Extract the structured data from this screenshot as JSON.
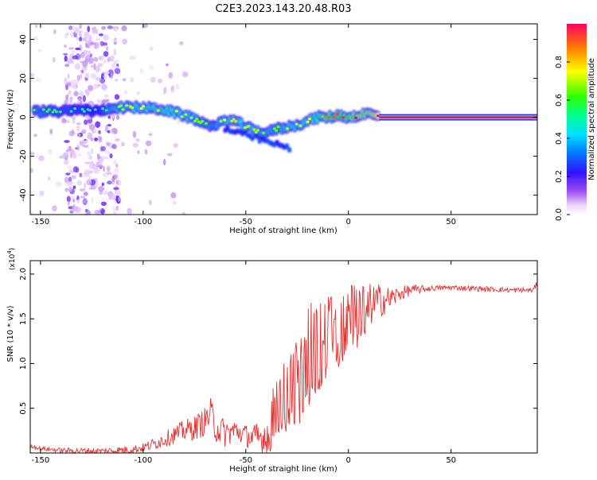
{
  "title": "C2E3.2023.143.20.48.R03",
  "colors": {
    "snr_line": "#e83030",
    "spectrum_colormap": [
      "#ffffff",
      "#e4cdfa",
      "#b070f0",
      "#6a00e0",
      "#2020ff",
      "#00c8ff",
      "#00ff80",
      "#40ff00",
      "#ffff00",
      "#ff8000",
      "#ff0000"
    ]
  },
  "chart_data": [
    {
      "type": "heatmap",
      "name": "spectrogram",
      "xlabel": "Height of straight line (km)",
      "ylabel": "Frequency (Hz)",
      "xlim": [
        -155,
        92
      ],
      "ylim": [
        -50,
        48
      ],
      "x_ticks": [
        -150,
        -100,
        -50,
        0,
        50
      ],
      "y_ticks": [
        40,
        20,
        0,
        -20,
        -40
      ],
      "x_tick_labels": [
        "-150",
        "-100",
        "-50",
        "0",
        "50"
      ],
      "y_tick_labels": [
        "40",
        "20",
        "0",
        "-20",
        "-40"
      ],
      "colorbar": {
        "label": "Normalized spectral amplitude",
        "range": [
          0,
          1
        ],
        "ticks": [
          0.0,
          0.2,
          0.4,
          0.6,
          0.8
        ],
        "tick_labels": [
          "0.0",
          "0.2",
          "0.4",
          "0.6",
          "0.8"
        ]
      },
      "ridge": {
        "x": [
          -152,
          -140,
          -130,
          -122,
          -115,
          -100,
          -90,
          -80,
          -70,
          -65,
          -60,
          -55,
          -50,
          -45,
          -40,
          -35,
          -30,
          -25,
          -20,
          -15,
          -10,
          -5,
          0,
          5,
          10,
          15,
          90
        ],
        "freq": [
          3,
          3,
          4,
          3,
          5,
          5,
          4,
          1,
          -3,
          -5,
          -1,
          -2,
          -5,
          -7,
          -8,
          -6,
          -5,
          -4,
          -2,
          0,
          0,
          1,
          0,
          1,
          2,
          0,
          0
        ],
        "amplitude": [
          0.45,
          0.4,
          0.35,
          0.3,
          0.5,
          0.6,
          0.65,
          0.55,
          0.5,
          0.45,
          0.6,
          0.65,
          0.55,
          0.55,
          0.5,
          0.5,
          0.55,
          0.55,
          0.6,
          0.65,
          0.75,
          0.8,
          0.85,
          0.9,
          0.9,
          1.0,
          1.0
        ]
      },
      "noise_band_x": [
        -138,
        -112
      ]
    },
    {
      "type": "line",
      "name": "snr",
      "xlabel": "Height of straight line (km)",
      "ylabel": "SNR (10 * v/v)",
      "scale_label": "(x10",
      "scale_exp": "4",
      "scale_close": ")",
      "xlim": [
        -155,
        92
      ],
      "ylim": [
        0,
        2.15
      ],
      "x_ticks": [
        -150,
        -100,
        -50,
        0,
        50
      ],
      "y_ticks": [
        0.5,
        1.0,
        1.5,
        2.0
      ],
      "x_tick_labels": [
        "-150",
        "-100",
        "-50",
        "0",
        "50"
      ],
      "y_tick_labels": [
        "0.5",
        "1.0",
        "1.5",
        "2.0"
      ],
      "envelope_x": [
        -155,
        -150,
        -140,
        -120,
        -105,
        -100,
        -95,
        -90,
        -85,
        -80,
        -75,
        -70,
        -67,
        -65,
        -60,
        -55,
        -50,
        -45,
        -40,
        -35,
        -30,
        -25,
        -20,
        -15,
        -12,
        -10,
        -5,
        0,
        5,
        10,
        15,
        20,
        25,
        30,
        40,
        50,
        60,
        70,
        80,
        90,
        92
      ],
      "envelope_y": [
        0.08,
        0.05,
        0.03,
        0.02,
        0.04,
        0.06,
        0.1,
        0.15,
        0.2,
        0.25,
        0.28,
        0.35,
        0.45,
        0.3,
        0.22,
        0.25,
        0.2,
        0.15,
        0.2,
        0.45,
        0.6,
        0.8,
        1.0,
        1.15,
        1.25,
        1.3,
        1.35,
        1.45,
        1.55,
        1.65,
        1.7,
        1.72,
        1.78,
        1.82,
        1.84,
        1.85,
        1.84,
        1.83,
        1.82,
        1.82,
        1.9
      ],
      "noise_amplitude_x": [
        -155,
        -100,
        -80,
        -65,
        -50,
        -35,
        -25,
        -15,
        -5,
        5,
        15,
        25,
        40,
        92
      ],
      "noise_amplitude_y": [
        0.02,
        0.05,
        0.12,
        0.18,
        0.12,
        0.3,
        0.45,
        0.5,
        0.35,
        0.3,
        0.2,
        0.08,
        0.03,
        0.03
      ]
    }
  ]
}
